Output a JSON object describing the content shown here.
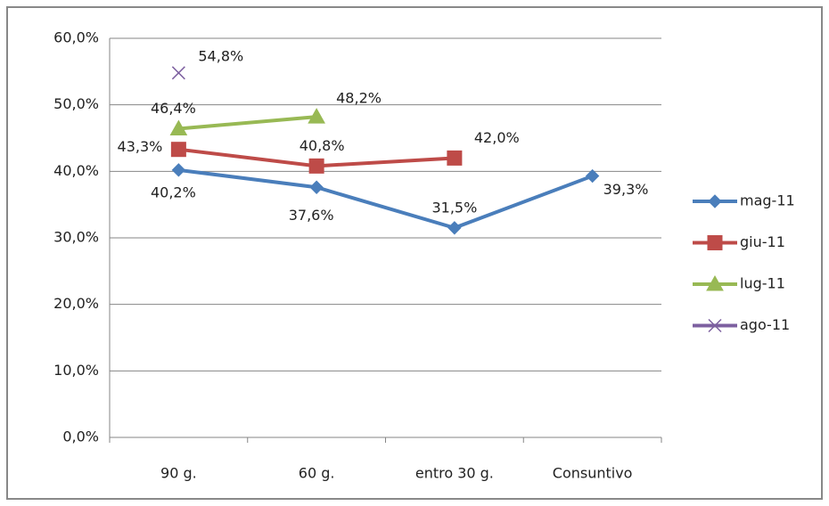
{
  "chart_data": {
    "type": "line",
    "categories": [
      "90 g.",
      "60 g.",
      "entro 30 g.",
      "Consuntivo"
    ],
    "series": [
      {
        "name": "mag-11",
        "color": "#4a7ebb",
        "marker": "diamond",
        "values": [
          40.2,
          37.6,
          31.5,
          39.3
        ],
        "value_labels": [
          "40,2%",
          "37,6%",
          "31,5%",
          "39,3%"
        ]
      },
      {
        "name": "giu-11",
        "color": "#be4b48",
        "marker": "square",
        "values": [
          43.3,
          40.8,
          42.0,
          null
        ],
        "value_labels": [
          "43,3%",
          "40,8%",
          "42,0%",
          null
        ]
      },
      {
        "name": "lug-11",
        "color": "#98b954",
        "marker": "triangle",
        "values": [
          46.4,
          48.2,
          null,
          null
        ],
        "value_labels": [
          "46,4%",
          "48,2%",
          null,
          null
        ]
      },
      {
        "name": "ago-11",
        "color": "#7d60a0",
        "marker": "x",
        "values": [
          54.8,
          null,
          null,
          null
        ],
        "value_labels": [
          "54,8%",
          null,
          null,
          null
        ]
      }
    ],
    "ylim": [
      0,
      60
    ],
    "yticks": [
      {
        "value": 0,
        "label": "0,0%"
      },
      {
        "value": 10,
        "label": "10,0%"
      },
      {
        "value": 20,
        "label": "20,0%"
      },
      {
        "value": 30,
        "label": "30,0%"
      },
      {
        "value": 40,
        "label": "40,0%"
      },
      {
        "value": 50,
        "label": "50,0%"
      },
      {
        "value": 60,
        "label": "60,0%"
      }
    ],
    "grid": true,
    "legend": "right"
  }
}
